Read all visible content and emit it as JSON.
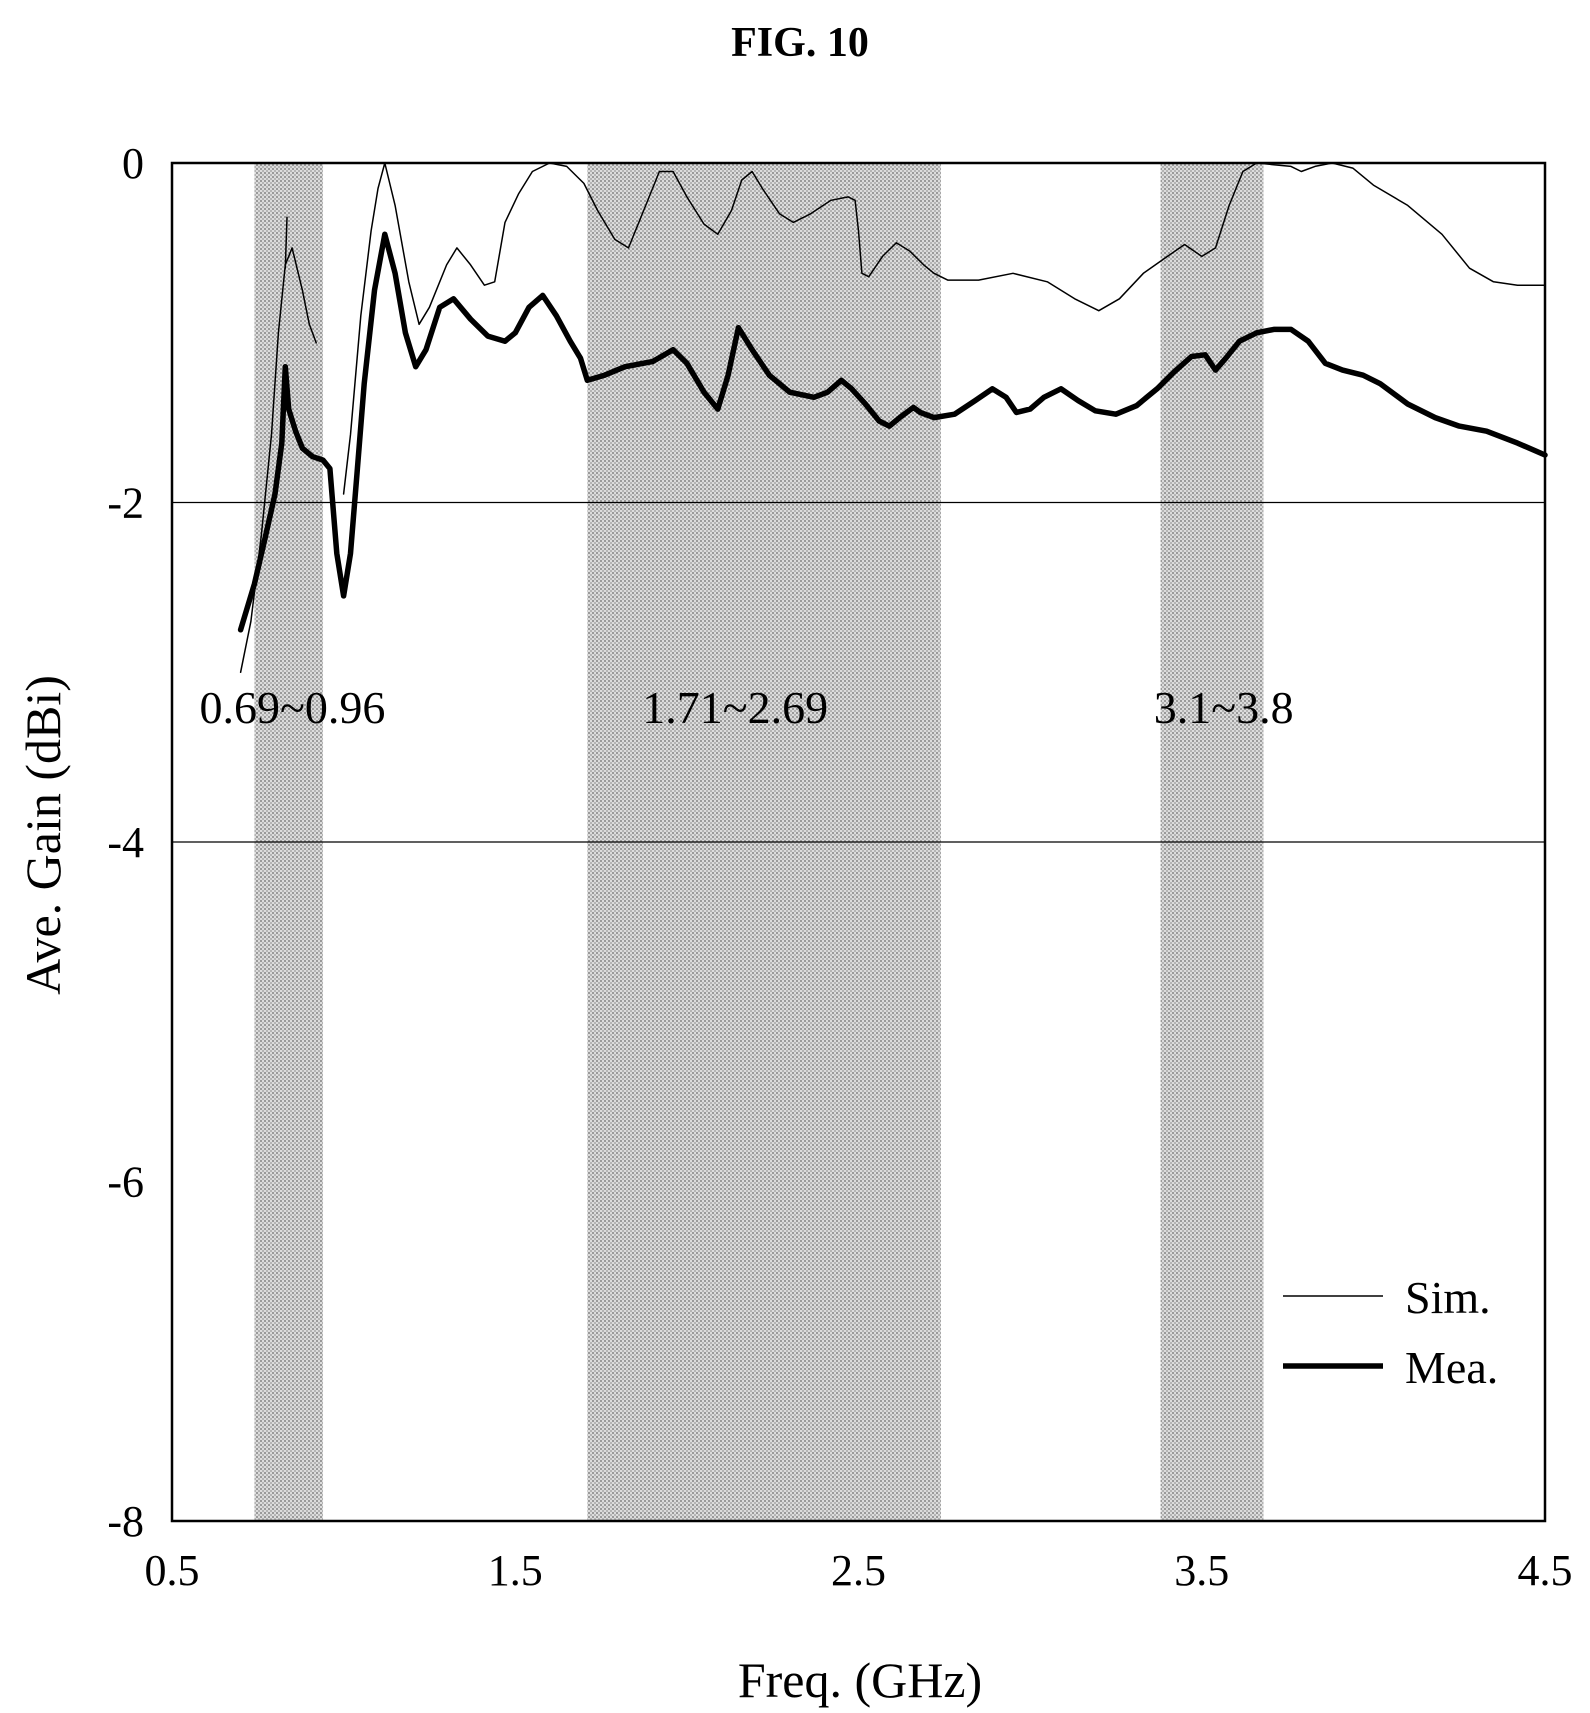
{
  "figure": {
    "title": "FIG. 10"
  },
  "chart_data": {
    "type": "line",
    "title": "FIG. 10",
    "xlabel": "Freq. (GHz)",
    "ylabel": "Ave. Gain (dBi)",
    "xlim": [
      0.5,
      4.5
    ],
    "ylim": [
      -8,
      0
    ],
    "xticks": [
      0.5,
      1.5,
      2.5,
      3.5,
      4.5
    ],
    "xtick_labels": [
      "0.5",
      "1.5",
      "2.5",
      "3.5",
      "4.5"
    ],
    "yticks": [
      0,
      -2,
      -4,
      -6,
      -8
    ],
    "ytick_labels": [
      "0",
      "-2",
      "-4",
      "-6",
      "-8"
    ],
    "gridlines_y": [
      -2,
      -4
    ],
    "legend": "bottom-right",
    "colors": {
      "line": "#000000",
      "band_fill": "#dcdcdc",
      "band_dot": "#9a9a9a"
    },
    "bands": [
      {
        "x0": 0.74,
        "x1": 0.94,
        "label": "0.69~0.96",
        "label_x": 0.58
      },
      {
        "x0": 1.71,
        "x1": 2.74,
        "label": "1.71~2.69",
        "label_x": 1.87
      },
      {
        "x0": 3.38,
        "x1": 3.68,
        "label": "3.1~3.8",
        "label_x": 3.36
      }
    ],
    "band_label_y": -3.3,
    "series": [
      {
        "name": "Sim.",
        "stroke_width": 1.5,
        "segments": [
          [
            [
              0.7,
              -3.0
            ],
            [
              0.73,
              -2.7
            ],
            [
              0.76,
              -2.2
            ],
            [
              0.79,
              -1.6
            ],
            [
              0.81,
              -1.0
            ],
            [
              0.83,
              -0.6
            ],
            [
              0.85,
              -0.5
            ],
            [
              0.88,
              -0.75
            ],
            [
              0.9,
              -0.95
            ],
            [
              0.92,
              -1.06
            ]
          ],
          [
            [
              0.83,
              -0.62
            ],
            [
              0.835,
              -0.32
            ]
          ],
          [
            [
              1.0,
              -1.95
            ],
            [
              1.02,
              -1.6
            ],
            [
              1.05,
              -0.9
            ],
            [
              1.08,
              -0.4
            ],
            [
              1.1,
              -0.15
            ],
            [
              1.12,
              0.0
            ],
            [
              1.15,
              -0.25
            ],
            [
              1.19,
              -0.7
            ],
            [
              1.22,
              -0.95
            ],
            [
              1.25,
              -0.85
            ],
            [
              1.3,
              -0.6
            ],
            [
              1.33,
              -0.5
            ],
            [
              1.37,
              -0.6
            ],
            [
              1.41,
              -0.72
            ],
            [
              1.44,
              -0.7
            ],
            [
              1.47,
              -0.35
            ],
            [
              1.51,
              -0.18
            ],
            [
              1.55,
              -0.05
            ],
            [
              1.6,
              0.0
            ],
            [
              1.65,
              -0.02
            ],
            [
              1.7,
              -0.12
            ],
            [
              1.74,
              -0.28
            ],
            [
              1.79,
              -0.45
            ],
            [
              1.83,
              -0.5
            ],
            [
              1.87,
              -0.3
            ],
            [
              1.92,
              -0.05
            ],
            [
              1.96,
              -0.05
            ],
            [
              2.0,
              -0.2
            ],
            [
              2.05,
              -0.36
            ],
            [
              2.09,
              -0.42
            ],
            [
              2.13,
              -0.28
            ],
            [
              2.16,
              -0.1
            ],
            [
              2.19,
              -0.05
            ],
            [
              2.22,
              -0.15
            ],
            [
              2.27,
              -0.3
            ],
            [
              2.31,
              -0.35
            ],
            [
              2.36,
              -0.3
            ],
            [
              2.42,
              -0.22
            ],
            [
              2.47,
              -0.2
            ],
            [
              2.49,
              -0.22
            ],
            [
              2.5,
              -0.4
            ],
            [
              2.51,
              -0.65
            ],
            [
              2.53,
              -0.67
            ],
            [
              2.57,
              -0.55
            ],
            [
              2.61,
              -0.47
            ],
            [
              2.65,
              -0.52
            ],
            [
              2.69,
              -0.6
            ],
            [
              2.72,
              -0.65
            ],
            [
              2.76,
              -0.69
            ],
            [
              2.85,
              -0.69
            ],
            [
              2.95,
              -0.65
            ],
            [
              3.05,
              -0.7
            ],
            [
              3.13,
              -0.8
            ],
            [
              3.2,
              -0.87
            ],
            [
              3.26,
              -0.8
            ],
            [
              3.33,
              -0.65
            ],
            [
              3.4,
              -0.55
            ],
            [
              3.45,
              -0.48
            ],
            [
              3.5,
              -0.55
            ],
            [
              3.54,
              -0.5
            ],
            [
              3.58,
              -0.25
            ],
            [
              3.62,
              -0.05
            ],
            [
              3.66,
              0.0
            ],
            [
              3.71,
              -0.01
            ],
            [
              3.76,
              -0.02
            ],
            [
              3.79,
              -0.05
            ],
            [
              3.83,
              -0.02
            ],
            [
              3.88,
              0.0
            ],
            [
              3.94,
              -0.03
            ],
            [
              4.0,
              -0.13
            ],
            [
              4.1,
              -0.25
            ],
            [
              4.2,
              -0.42
            ],
            [
              4.28,
              -0.62
            ],
            [
              4.35,
              -0.7
            ],
            [
              4.42,
              -0.72
            ],
            [
              4.5,
              -0.72
            ]
          ]
        ]
      },
      {
        "name": "Mea.",
        "stroke_width": 5.5,
        "segments": [
          [
            [
              0.7,
              -2.75
            ],
            [
              0.74,
              -2.48
            ],
            [
              0.77,
              -2.22
            ],
            [
              0.8,
              -1.95
            ],
            [
              0.82,
              -1.65
            ],
            [
              0.83,
              -1.2
            ],
            [
              0.84,
              -1.45
            ],
            [
              0.86,
              -1.58
            ],
            [
              0.88,
              -1.68
            ],
            [
              0.91,
              -1.73
            ],
            [
              0.94,
              -1.75
            ],
            [
              0.96,
              -1.8
            ],
            [
              0.98,
              -2.3
            ],
            [
              1.0,
              -2.55
            ],
            [
              1.02,
              -2.3
            ],
            [
              1.04,
              -1.8
            ],
            [
              1.06,
              -1.3
            ],
            [
              1.09,
              -0.75
            ],
            [
              1.12,
              -0.42
            ],
            [
              1.15,
              -0.65
            ],
            [
              1.18,
              -1.0
            ],
            [
              1.21,
              -1.2
            ],
            [
              1.24,
              -1.1
            ],
            [
              1.28,
              -0.85
            ],
            [
              1.32,
              -0.8
            ],
            [
              1.37,
              -0.92
            ],
            [
              1.42,
              -1.02
            ],
            [
              1.47,
              -1.05
            ],
            [
              1.5,
              -1.0
            ],
            [
              1.54,
              -0.85
            ],
            [
              1.58,
              -0.78
            ],
            [
              1.62,
              -0.9
            ],
            [
              1.66,
              -1.05
            ],
            [
              1.69,
              -1.15
            ],
            [
              1.71,
              -1.28
            ],
            [
              1.76,
              -1.25
            ],
            [
              1.82,
              -1.2
            ],
            [
              1.9,
              -1.17
            ],
            [
              1.96,
              -1.1
            ],
            [
              2.0,
              -1.18
            ],
            [
              2.05,
              -1.35
            ],
            [
              2.09,
              -1.45
            ],
            [
              2.12,
              -1.25
            ],
            [
              2.15,
              -0.97
            ],
            [
              2.19,
              -1.1
            ],
            [
              2.24,
              -1.25
            ],
            [
              2.3,
              -1.35
            ],
            [
              2.37,
              -1.38
            ],
            [
              2.41,
              -1.35
            ],
            [
              2.45,
              -1.28
            ],
            [
              2.48,
              -1.33
            ],
            [
              2.52,
              -1.42
            ],
            [
              2.56,
              -1.52
            ],
            [
              2.59,
              -1.55
            ],
            [
              2.62,
              -1.5
            ],
            [
              2.66,
              -1.44
            ],
            [
              2.68,
              -1.47
            ],
            [
              2.72,
              -1.5
            ],
            [
              2.78,
              -1.48
            ],
            [
              2.84,
              -1.4
            ],
            [
              2.89,
              -1.33
            ],
            [
              2.93,
              -1.38
            ],
            [
              2.96,
              -1.47
            ],
            [
              3.0,
              -1.45
            ],
            [
              3.04,
              -1.38
            ],
            [
              3.09,
              -1.33
            ],
            [
              3.14,
              -1.4
            ],
            [
              3.19,
              -1.46
            ],
            [
              3.25,
              -1.48
            ],
            [
              3.31,
              -1.43
            ],
            [
              3.37,
              -1.33
            ],
            [
              3.42,
              -1.23
            ],
            [
              3.47,
              -1.14
            ],
            [
              3.51,
              -1.13
            ],
            [
              3.54,
              -1.22
            ],
            [
              3.57,
              -1.15
            ],
            [
              3.61,
              -1.05
            ],
            [
              3.66,
              -1.0
            ],
            [
              3.71,
              -0.98
            ],
            [
              3.76,
              -0.98
            ],
            [
              3.81,
              -1.05
            ],
            [
              3.86,
              -1.18
            ],
            [
              3.91,
              -1.22
            ],
            [
              3.97,
              -1.25
            ],
            [
              4.02,
              -1.3
            ],
            [
              4.1,
              -1.42
            ],
            [
              4.18,
              -1.5
            ],
            [
              4.25,
              -1.55
            ],
            [
              4.33,
              -1.58
            ],
            [
              4.42,
              -1.65
            ],
            [
              4.5,
              -1.72
            ]
          ]
        ]
      }
    ]
  }
}
